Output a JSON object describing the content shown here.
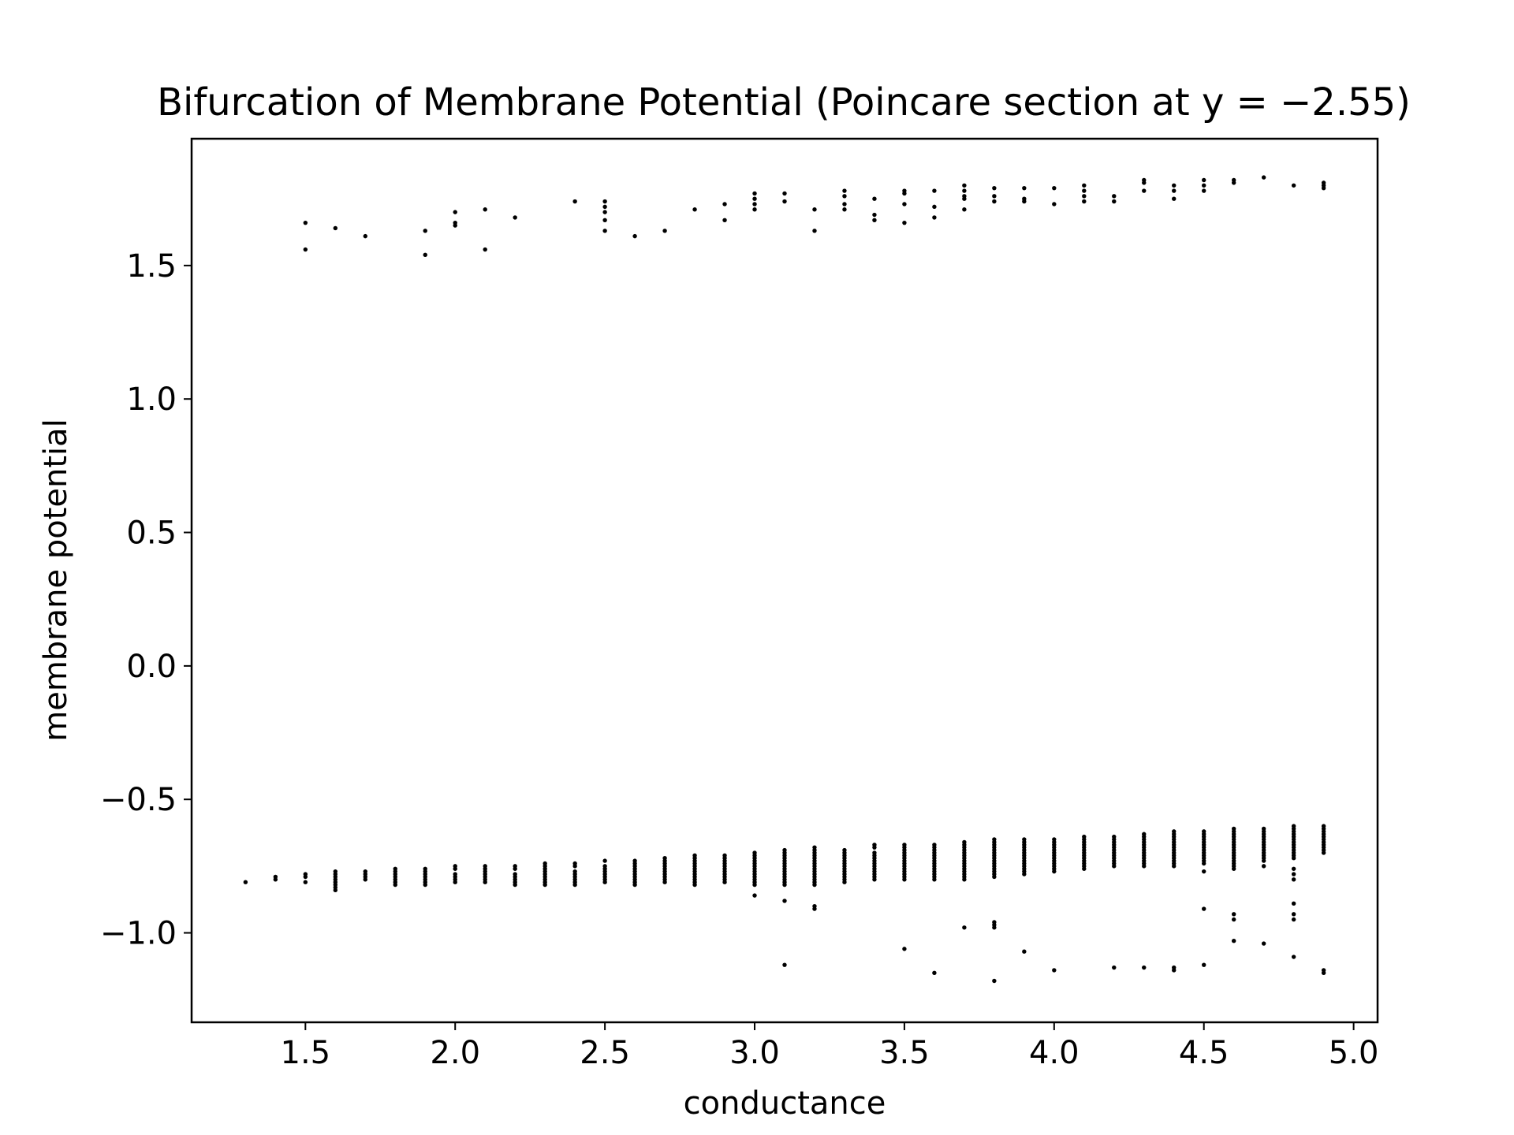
{
  "chart_data": {
    "type": "scatter",
    "title": "Bifurcation of Membrane Potential (Poincare section at y = −2.55)",
    "xlabel": "conductance",
    "ylabel": "membrane potential",
    "xlim": [
      1.12,
      5.08
    ],
    "ylim": [
      -1.335,
      1.975
    ],
    "xticks": [
      1.5,
      2.0,
      2.5,
      3.0,
      3.5,
      4.0,
      4.5,
      5.0
    ],
    "xtick_labels": [
      "1.5",
      "2.0",
      "2.5",
      "3.0",
      "3.5",
      "4.0",
      "4.5",
      "5.0"
    ],
    "yticks": [
      1.5,
      1.0,
      0.5,
      0.0,
      -0.5,
      -1.0
    ],
    "ytick_labels": [
      "1.5",
      "1.0",
      "0.5",
      "0.0",
      "−0.5",
      "−1.0"
    ],
    "grid": false,
    "marker_color": "#000000",
    "points_by_x": [
      {
        "x": 1.3,
        "y": [
          -0.81
        ]
      },
      {
        "x": 1.4,
        "y": [
          -0.79,
          -0.8
        ]
      },
      {
        "x": 1.5,
        "y": [
          1.66,
          1.56,
          -0.78,
          -0.79,
          -0.81
        ]
      },
      {
        "x": 1.6,
        "y": [
          1.64,
          -0.77,
          -0.78,
          -0.79,
          -0.8,
          -0.81,
          -0.82,
          -0.83,
          -0.84
        ]
      },
      {
        "x": 1.7,
        "y": [
          1.61,
          -0.77,
          -0.78,
          -0.79,
          -0.8
        ]
      },
      {
        "x": 1.8,
        "y": [
          -0.76,
          -0.77,
          -0.78,
          -0.79,
          -0.8,
          -0.81,
          -0.82
        ]
      },
      {
        "x": 1.9,
        "y": [
          1.63,
          1.54,
          -0.76,
          -0.77,
          -0.78,
          -0.79,
          -0.8,
          -0.81,
          -0.82
        ]
      },
      {
        "x": 2.0,
        "y": [
          1.7,
          1.66,
          1.65,
          -0.75,
          -0.76,
          -0.78,
          -0.79,
          -0.8,
          -0.81
        ]
      },
      {
        "x": 2.1,
        "y": [
          1.71,
          1.56,
          -0.75,
          -0.76,
          -0.77,
          -0.78,
          -0.79,
          -0.8,
          -0.81
        ]
      },
      {
        "x": 2.2,
        "y": [
          1.68,
          -0.75,
          -0.76,
          -0.78,
          -0.79,
          -0.8,
          -0.81,
          -0.82
        ]
      },
      {
        "x": 2.3,
        "y": [
          -0.74,
          -0.75,
          -0.76,
          -0.77,
          -0.78,
          -0.79,
          -0.8,
          -0.81,
          -0.82
        ]
      },
      {
        "x": 2.4,
        "y": [
          1.74,
          -0.74,
          -0.75,
          -0.77,
          -0.78,
          -0.79,
          -0.8,
          -0.81,
          -0.82
        ]
      },
      {
        "x": 2.5,
        "y": [
          1.74,
          1.72,
          1.7,
          1.67,
          1.63,
          -0.73,
          -0.75,
          -0.76,
          -0.77,
          -0.78,
          -0.79,
          -0.8,
          -0.81
        ]
      },
      {
        "x": 2.6,
        "y": [
          1.61,
          -0.73,
          -0.74,
          -0.75,
          -0.76,
          -0.77,
          -0.78,
          -0.79,
          -0.8,
          -0.81,
          -0.82
        ]
      },
      {
        "x": 2.7,
        "y": [
          1.63,
          -0.72,
          -0.73,
          -0.74,
          -0.75,
          -0.76,
          -0.77,
          -0.78,
          -0.79,
          -0.8,
          -0.81
        ]
      },
      {
        "x": 2.8,
        "y": [
          1.71,
          -0.71,
          -0.72,
          -0.73,
          -0.74,
          -0.75,
          -0.76,
          -0.77,
          -0.78,
          -0.79,
          -0.8,
          -0.81,
          -0.82
        ]
      },
      {
        "x": 2.9,
        "y": [
          1.73,
          1.67,
          -0.71,
          -0.72,
          -0.73,
          -0.74,
          -0.75,
          -0.76,
          -0.77,
          -0.78,
          -0.79,
          -0.8,
          -0.81
        ]
      },
      {
        "x": 3.0,
        "y": [
          1.77,
          1.75,
          1.73,
          1.71,
          -0.7,
          -0.71,
          -0.72,
          -0.73,
          -0.74,
          -0.75,
          -0.76,
          -0.77,
          -0.78,
          -0.79,
          -0.8,
          -0.81,
          -0.82,
          -0.86
        ]
      },
      {
        "x": 3.1,
        "y": [
          1.77,
          1.74,
          -0.69,
          -0.7,
          -0.71,
          -0.72,
          -0.73,
          -0.74,
          -0.75,
          -0.76,
          -0.77,
          -0.78,
          -0.79,
          -0.8,
          -0.81,
          -0.82,
          -0.88,
          -1.12
        ]
      },
      {
        "x": 3.2,
        "y": [
          1.71,
          1.63,
          -0.68,
          -0.69,
          -0.7,
          -0.71,
          -0.72,
          -0.73,
          -0.74,
          -0.75,
          -0.76,
          -0.77,
          -0.78,
          -0.79,
          -0.8,
          -0.81,
          -0.82,
          -0.9,
          -0.91
        ]
      },
      {
        "x": 3.3,
        "y": [
          1.78,
          1.76,
          1.73,
          1.71,
          -0.69,
          -0.7,
          -0.71,
          -0.72,
          -0.73,
          -0.74,
          -0.75,
          -0.76,
          -0.77,
          -0.78,
          -0.79,
          -0.8,
          -0.81
        ]
      },
      {
        "x": 3.4,
        "y": [
          1.75,
          1.69,
          1.67,
          -0.67,
          -0.68,
          -0.7,
          -0.71,
          -0.72,
          -0.73,
          -0.74,
          -0.75,
          -0.76,
          -0.77,
          -0.78,
          -0.79,
          -0.8
        ]
      },
      {
        "x": 3.5,
        "y": [
          1.78,
          1.77,
          1.73,
          1.66,
          -0.67,
          -0.68,
          -0.69,
          -0.7,
          -0.71,
          -0.72,
          -0.73,
          -0.74,
          -0.75,
          -0.76,
          -0.77,
          -0.78,
          -0.79,
          -0.8,
          -1.06
        ]
      },
      {
        "x": 3.6,
        "y": [
          1.78,
          1.72,
          1.68,
          -0.67,
          -0.68,
          -0.69,
          -0.7,
          -0.71,
          -0.72,
          -0.73,
          -0.74,
          -0.75,
          -0.76,
          -0.77,
          -0.78,
          -0.79,
          -0.8,
          -1.15
        ]
      },
      {
        "x": 3.7,
        "y": [
          1.8,
          1.78,
          1.76,
          1.75,
          1.71,
          -0.66,
          -0.67,
          -0.68,
          -0.69,
          -0.7,
          -0.71,
          -0.72,
          -0.73,
          -0.74,
          -0.75,
          -0.76,
          -0.77,
          -0.78,
          -0.79,
          -0.8,
          -0.98
        ]
      },
      {
        "x": 3.8,
        "y": [
          1.79,
          1.76,
          1.74,
          -0.65,
          -0.66,
          -0.67,
          -0.68,
          -0.69,
          -0.7,
          -0.71,
          -0.72,
          -0.73,
          -0.74,
          -0.75,
          -0.76,
          -0.77,
          -0.78,
          -0.79,
          -0.96,
          -0.97,
          -0.98,
          -1.18
        ]
      },
      {
        "x": 3.9,
        "y": [
          1.79,
          1.75,
          1.74,
          -0.65,
          -0.66,
          -0.67,
          -0.68,
          -0.69,
          -0.7,
          -0.71,
          -0.72,
          -0.73,
          -0.74,
          -0.75,
          -0.76,
          -0.77,
          -0.78,
          -1.07
        ]
      },
      {
        "x": 4.0,
        "y": [
          1.79,
          1.73,
          -0.65,
          -0.66,
          -0.67,
          -0.68,
          -0.69,
          -0.7,
          -0.71,
          -0.72,
          -0.73,
          -0.74,
          -0.75,
          -0.76,
          -0.77,
          -1.14
        ]
      },
      {
        "x": 4.1,
        "y": [
          1.8,
          1.78,
          1.76,
          1.74,
          -0.64,
          -0.65,
          -0.66,
          -0.67,
          -0.68,
          -0.69,
          -0.7,
          -0.71,
          -0.72,
          -0.73,
          -0.74,
          -0.75,
          -0.76
        ]
      },
      {
        "x": 4.2,
        "y": [
          1.76,
          1.74,
          -0.64,
          -0.65,
          -0.66,
          -0.67,
          -0.68,
          -0.69,
          -0.7,
          -0.71,
          -0.72,
          -0.73,
          -0.74,
          -0.75,
          -1.13
        ]
      },
      {
        "x": 4.3,
        "y": [
          1.82,
          1.81,
          1.78,
          -0.63,
          -0.64,
          -0.65,
          -0.66,
          -0.67,
          -0.68,
          -0.69,
          -0.7,
          -0.71,
          -0.72,
          -0.73,
          -0.74,
          -0.75,
          -1.13
        ]
      },
      {
        "x": 4.4,
        "y": [
          1.8,
          1.78,
          1.75,
          -0.62,
          -0.63,
          -0.64,
          -0.65,
          -0.66,
          -0.67,
          -0.68,
          -0.69,
          -0.7,
          -0.71,
          -0.72,
          -0.73,
          -0.74,
          -0.75,
          -1.13,
          -1.14
        ]
      },
      {
        "x": 4.5,
        "y": [
          1.82,
          1.8,
          1.78,
          -0.62,
          -0.63,
          -0.64,
          -0.65,
          -0.66,
          -0.67,
          -0.68,
          -0.69,
          -0.7,
          -0.71,
          -0.72,
          -0.73,
          -0.74,
          -0.77,
          -0.91,
          -1.12
        ]
      },
      {
        "x": 4.6,
        "y": [
          1.82,
          1.81,
          -0.61,
          -0.62,
          -0.63,
          -0.64,
          -0.65,
          -0.66,
          -0.67,
          -0.68,
          -0.69,
          -0.7,
          -0.71,
          -0.72,
          -0.73,
          -0.74,
          -0.75,
          -0.76,
          -0.93,
          -0.95,
          -1.03
        ]
      },
      {
        "x": 4.7,
        "y": [
          1.83,
          -0.61,
          -0.62,
          -0.63,
          -0.64,
          -0.65,
          -0.66,
          -0.67,
          -0.68,
          -0.69,
          -0.7,
          -0.71,
          -0.72,
          -0.73,
          -0.75,
          -1.04
        ]
      },
      {
        "x": 4.8,
        "y": [
          1.8,
          -0.6,
          -0.61,
          -0.62,
          -0.63,
          -0.64,
          -0.65,
          -0.66,
          -0.67,
          -0.68,
          -0.69,
          -0.7,
          -0.71,
          -0.72,
          -0.76,
          -0.78,
          -0.8,
          -0.89,
          -0.93,
          -0.95,
          -1.09
        ]
      },
      {
        "x": 4.9,
        "y": [
          1.81,
          1.8,
          1.79,
          -0.6,
          -0.61,
          -0.62,
          -0.63,
          -0.64,
          -0.65,
          -0.66,
          -0.67,
          -0.68,
          -0.69,
          -0.7,
          -1.14,
          -1.15
        ]
      }
    ]
  }
}
